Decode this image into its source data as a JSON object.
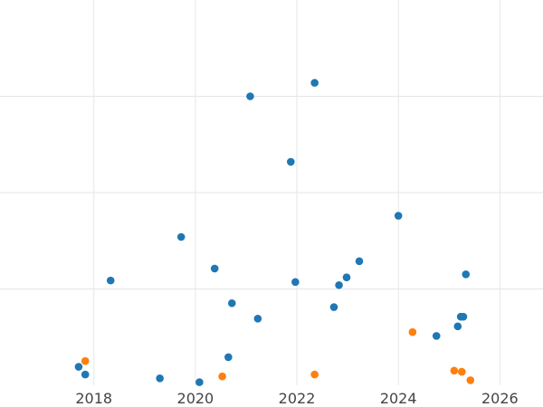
{
  "chart_data": {
    "type": "scatter",
    "title": "",
    "xlabel": "",
    "ylabel": "",
    "xlim": [
      2016.15,
      2026.85
    ],
    "ylim": [
      0,
      1.0
    ],
    "grid": true,
    "x_ticks": [
      2018,
      2020,
      2022,
      2024,
      2026
    ],
    "x_tick_labels": [
      "2018",
      "2020",
      "2022",
      "2024",
      "2026"
    ],
    "y_gridlines": [
      0.25,
      0.5,
      0.75
    ],
    "series": [
      {
        "color": "#1f77b4",
        "points": [
          {
            "x": 2017.7,
            "y": 0.048
          },
          {
            "x": 2017.83,
            "y": 0.028
          },
          {
            "x": 2018.33,
            "y": 0.272
          },
          {
            "x": 2019.3,
            "y": 0.018
          },
          {
            "x": 2019.72,
            "y": 0.385
          },
          {
            "x": 2020.08,
            "y": 0.008
          },
          {
            "x": 2020.38,
            "y": 0.303
          },
          {
            "x": 2020.65,
            "y": 0.073
          },
          {
            "x": 2020.72,
            "y": 0.213
          },
          {
            "x": 2021.08,
            "y": 0.75
          },
          {
            "x": 2021.23,
            "y": 0.173
          },
          {
            "x": 2021.88,
            "y": 0.58
          },
          {
            "x": 2021.97,
            "y": 0.268
          },
          {
            "x": 2022.35,
            "y": 0.785
          },
          {
            "x": 2022.73,
            "y": 0.203
          },
          {
            "x": 2022.83,
            "y": 0.26
          },
          {
            "x": 2022.98,
            "y": 0.28
          },
          {
            "x": 2023.23,
            "y": 0.322
          },
          {
            "x": 2024.0,
            "y": 0.44
          },
          {
            "x": 2024.75,
            "y": 0.128
          },
          {
            "x": 2025.17,
            "y": 0.153
          },
          {
            "x": 2025.23,
            "y": 0.178
          },
          {
            "x": 2025.28,
            "y": 0.178
          },
          {
            "x": 2025.33,
            "y": 0.288
          }
        ]
      },
      {
        "color": "#ff7f0e",
        "points": [
          {
            "x": 2017.83,
            "y": 0.063
          },
          {
            "x": 2020.53,
            "y": 0.023
          },
          {
            "x": 2022.35,
            "y": 0.028
          },
          {
            "x": 2024.28,
            "y": 0.138
          },
          {
            "x": 2025.1,
            "y": 0.038
          },
          {
            "x": 2025.25,
            "y": 0.035
          },
          {
            "x": 2025.42,
            "y": 0.013
          }
        ]
      }
    ]
  }
}
